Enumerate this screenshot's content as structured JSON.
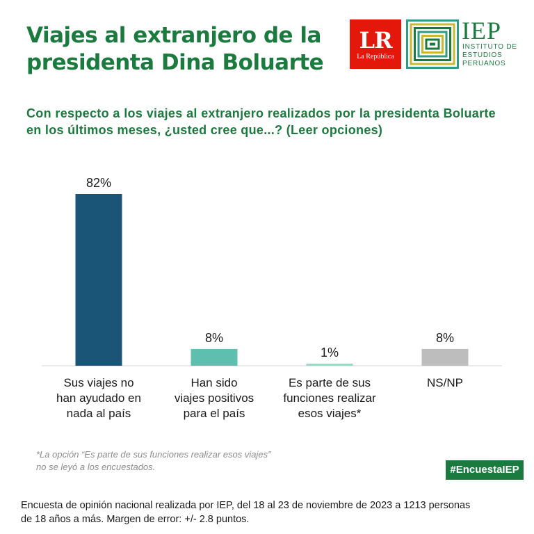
{
  "header": {
    "title_line1": "Viajes al extranjero de la",
    "title_line2": "presidenta Dina Boluarte"
  },
  "logos": {
    "lr_big": "LR",
    "lr_small": "La República",
    "iep_name": "IEP",
    "iep_line1": "INSTITUTO DE",
    "iep_line2": "ESTUDIOS",
    "iep_line3": "PERUANOS"
  },
  "question": "Con respecto a los viajes al extranjero realizados por la presidenta Boluarte en los últimos meses, ¿usted cree que...? (Leer opciones)",
  "chart_data": {
    "type": "bar",
    "categories": [
      [
        "Sus viajes no",
        "han ayudado en",
        "nada al país"
      ],
      [
        "Han sido",
        "viajes positivos",
        "para el país"
      ],
      [
        "Es parte de sus",
        "funciones realizar",
        "esos viajes*"
      ],
      [
        "NS/NP"
      ]
    ],
    "values": [
      82,
      8,
      1,
      8
    ],
    "value_labels": [
      "82%",
      "8%",
      "1%",
      "8%"
    ],
    "colors": [
      "#1a5477",
      "#5fbfaf",
      "#88e3c3",
      "#bdbdbd"
    ],
    "ylim": [
      0,
      82
    ],
    "grid": false
  },
  "footnote": {
    "line1": "*La opción “Es parte de sus funciones realizar esos viajes”",
    "line2": "no se leyó a los encuestados."
  },
  "hashtag": "#EncuestaIEP",
  "source": {
    "line1": "Encuesta de opinión nacional realizada por IEP, del 18 al 23 de noviembre de 2023 a 1213 personas",
    "line2": "de 18 años a más. Margen de error: +/- 2.8 puntos."
  }
}
